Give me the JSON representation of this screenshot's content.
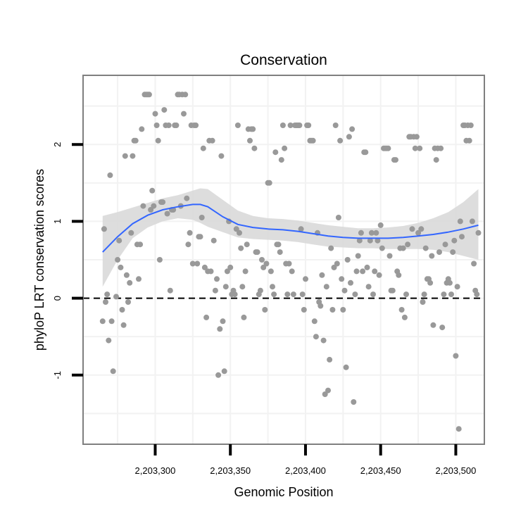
{
  "chart_data": {
    "type": "scatter",
    "title": "Conservation",
    "xlabel": "Genomic Position",
    "ylabel": "phyloP LRT conservation scores",
    "xlim": [
      2203252,
      2203519
    ],
    "ylim": [
      -1.9,
      2.9
    ],
    "x_ticks": [
      2203300,
      2203350,
      2203400,
      2203450,
      2203500
    ],
    "x_tick_labels": [
      "2,203,300",
      "2,203,350",
      "2,203,400",
      "2,203,450",
      "2,203,500"
    ],
    "y_ticks": [
      -1,
      0,
      1,
      2
    ],
    "y_tick_labels": [
      "-1",
      "0",
      "1",
      "2"
    ],
    "grid": true,
    "reference_line": {
      "y": 0,
      "style": "dashed"
    },
    "colors": {
      "points": "#999999",
      "smooth_line": "#3366FF",
      "ribbon": "#D9D9D9",
      "panel_border": "#7F7F7F",
      "grid": "#F2F2F2"
    },
    "points": [
      [
        2203265,
        -0.3
      ],
      [
        2203266,
        0.9
      ],
      [
        2203267,
        -0.05
      ],
      [
        2203268,
        0.05
      ],
      [
        2203269,
        -0.55
      ],
      [
        2203270,
        1.6
      ],
      [
        2203271,
        -0.3
      ],
      [
        2203272,
        -0.95
      ],
      [
        2203274,
        0.02
      ],
      [
        2203275,
        0.5
      ],
      [
        2203276,
        0.75
      ],
      [
        2203277,
        0.4
      ],
      [
        2203278,
        -0.15
      ],
      [
        2203279,
        -0.35
      ],
      [
        2203280,
        1.85
      ],
      [
        2203281,
        0.3
      ],
      [
        2203282,
        -0.05
      ],
      [
        2203283,
        0.2
      ],
      [
        2203284,
        0.85
      ],
      [
        2203285,
        1.85
      ],
      [
        2203286,
        2.05
      ],
      [
        2203287,
        2.05
      ],
      [
        2203288,
        0.7
      ],
      [
        2203289,
        0.25
      ],
      [
        2203290,
        0.7
      ],
      [
        2203291,
        2.2
      ],
      [
        2203292,
        1.2
      ],
      [
        2203293,
        2.65
      ],
      [
        2203294,
        2.65
      ],
      [
        2203295,
        2.65
      ],
      [
        2203296,
        2.65
      ],
      [
        2203297,
        1.15
      ],
      [
        2203298,
        1.4
      ],
      [
        2203299,
        1.2
      ],
      [
        2203300,
        2.4
      ],
      [
        2203301,
        2.25
      ],
      [
        2203302,
        2.05
      ],
      [
        2203303,
        0.5
      ],
      [
        2203304,
        1.25
      ],
      [
        2203305,
        1.25
      ],
      [
        2203306,
        2.45
      ],
      [
        2203307,
        2.25
      ],
      [
        2203308,
        1.1
      ],
      [
        2203309,
        2.25
      ],
      [
        2203310,
        0.1
      ],
      [
        2203311,
        1.15
      ],
      [
        2203312,
        1.15
      ],
      [
        2203313,
        2.25
      ],
      [
        2203314,
        2.25
      ],
      [
        2203315,
        2.65
      ],
      [
        2203316,
        2.65
      ],
      [
        2203317,
        1.2
      ],
      [
        2203318,
        2.65
      ],
      [
        2203319,
        2.4
      ],
      [
        2203320,
        2.65
      ],
      [
        2203321,
        1.3
      ],
      [
        2203322,
        0.7
      ],
      [
        2203323,
        0.85
      ],
      [
        2203324,
        2.25
      ],
      [
        2203325,
        0.45
      ],
      [
        2203326,
        2.25
      ],
      [
        2203327,
        2.25
      ],
      [
        2203328,
        0.45
      ],
      [
        2203329,
        0.8
      ],
      [
        2203330,
        0.8
      ],
      [
        2203331,
        1.05
      ],
      [
        2203332,
        1.95
      ],
      [
        2203333,
        0.4
      ],
      [
        2203334,
        -0.25
      ],
      [
        2203335,
        0.35
      ],
      [
        2203336,
        2.05
      ],
      [
        2203337,
        0.35
      ],
      [
        2203338,
        2.05
      ],
      [
        2203339,
        0.75
      ],
      [
        2203340,
        0.1
      ],
      [
        2203341,
        0.25
      ],
      [
        2203342,
        -1.0
      ],
      [
        2203343,
        -0.4
      ],
      [
        2203344,
        1.85
      ],
      [
        2203345,
        -0.3
      ],
      [
        2203346,
        -0.95
      ],
      [
        2203347,
        0.15
      ],
      [
        2203348,
        0.35
      ],
      [
        2203349,
        1.0
      ],
      [
        2203350,
        0.4
      ],
      [
        2203351,
        0.05
      ],
      [
        2203352,
        0.1
      ],
      [
        2203353,
        0.05
      ],
      [
        2203354,
        0.9
      ],
      [
        2203355,
        2.25
      ],
      [
        2203356,
        0.85
      ],
      [
        2203357,
        0.65
      ],
      [
        2203358,
        0.15
      ],
      [
        2203359,
        -0.25
      ],
      [
        2203360,
        0.35
      ],
      [
        2203361,
        0.7
      ],
      [
        2203362,
        2.2
      ],
      [
        2203363,
        2.05
      ],
      [
        2203364,
        2.2
      ],
      [
        2203365,
        2.2
      ],
      [
        2203366,
        1.95
      ],
      [
        2203367,
        0.6
      ],
      [
        2203368,
        0.6
      ],
      [
        2203369,
        0.05
      ],
      [
        2203370,
        0.1
      ],
      [
        2203371,
        0.5
      ],
      [
        2203372,
        0.4
      ],
      [
        2203373,
        -0.15
      ],
      [
        2203374,
        0.45
      ],
      [
        2203375,
        1.5
      ],
      [
        2203376,
        1.5
      ],
      [
        2203377,
        0.35
      ],
      [
        2203378,
        0.15
      ],
      [
        2203379,
        0.05
      ],
      [
        2203380,
        1.9
      ],
      [
        2203381,
        0.7
      ],
      [
        2203382,
        0.7
      ],
      [
        2203383,
        0.6
      ],
      [
        2203384,
        1.8
      ],
      [
        2203385,
        2.25
      ],
      [
        2203386,
        1.95
      ],
      [
        2203387,
        0.45
      ],
      [
        2203388,
        0.05
      ],
      [
        2203389,
        0.45
      ],
      [
        2203390,
        2.25
      ],
      [
        2203391,
        0.35
      ],
      [
        2203392,
        0.05
      ],
      [
        2203393,
        2.25
      ],
      [
        2203394,
        2.25
      ],
      [
        2203395,
        2.25
      ],
      [
        2203396,
        2.25
      ],
      [
        2203397,
        0.9
      ],
      [
        2203398,
        0.05
      ],
      [
        2203399,
        -0.15
      ],
      [
        2203400,
        0.25
      ],
      [
        2203401,
        2.25
      ],
      [
        2203402,
        2.25
      ],
      [
        2203403,
        2.05
      ],
      [
        2203404,
        2.05
      ],
      [
        2203405,
        2.05
      ],
      [
        2203406,
        -0.3
      ],
      [
        2203407,
        -0.5
      ],
      [
        2203408,
        0.85
      ],
      [
        2203409,
        -0.05
      ],
      [
        2203410,
        -0.1
      ],
      [
        2203411,
        0.3
      ],
      [
        2203412,
        -0.55
      ],
      [
        2203413,
        -1.25
      ],
      [
        2203414,
        0.15
      ],
      [
        2203415,
        -1.2
      ],
      [
        2203416,
        -0.8
      ],
      [
        2203417,
        0.65
      ],
      [
        2203418,
        -0.15
      ],
      [
        2203419,
        0.4
      ],
      [
        2203420,
        2.25
      ],
      [
        2203421,
        0.45
      ],
      [
        2203422,
        1.05
      ],
      [
        2203423,
        2.05
      ],
      [
        2203424,
        0.25
      ],
      [
        2203425,
        -0.15
      ],
      [
        2203426,
        0.1
      ],
      [
        2203427,
        -0.9
      ],
      [
        2203428,
        0.5
      ],
      [
        2203429,
        2.1
      ],
      [
        2203430,
        0.2
      ],
      [
        2203431,
        2.2
      ],
      [
        2203432,
        -1.35
      ],
      [
        2203433,
        0.05
      ],
      [
        2203434,
        0.35
      ],
      [
        2203435,
        0.55
      ],
      [
        2203436,
        0.75
      ],
      [
        2203437,
        0.85
      ],
      [
        2203438,
        0.35
      ],
      [
        2203439,
        1.9
      ],
      [
        2203440,
        1.9
      ],
      [
        2203441,
        0.4
      ],
      [
        2203442,
        0.15
      ],
      [
        2203443,
        0.75
      ],
      [
        2203444,
        0.85
      ],
      [
        2203445,
        0.05
      ],
      [
        2203446,
        0.35
      ],
      [
        2203447,
        0.85
      ],
      [
        2203448,
        0.75
      ],
      [
        2203449,
        0.3
      ],
      [
        2203450,
        0.95
      ],
      [
        2203451,
        0.65
      ],
      [
        2203452,
        1.95
      ],
      [
        2203453,
        1.95
      ],
      [
        2203454,
        1.95
      ],
      [
        2203455,
        1.95
      ],
      [
        2203456,
        0.55
      ],
      [
        2203457,
        0.1
      ],
      [
        2203458,
        0.1
      ],
      [
        2203459,
        1.8
      ],
      [
        2203460,
        1.8
      ],
      [
        2203461,
        0.35
      ],
      [
        2203462,
        0.3
      ],
      [
        2203463,
        0.65
      ],
      [
        2203464,
        -0.15
      ],
      [
        2203465,
        0.65
      ],
      [
        2203466,
        -0.25
      ],
      [
        2203467,
        0.05
      ],
      [
        2203468,
        0.7
      ],
      [
        2203469,
        2.1
      ],
      [
        2203470,
        2.1
      ],
      [
        2203471,
        0.9
      ],
      [
        2203472,
        2.1
      ],
      [
        2203473,
        1.95
      ],
      [
        2203474,
        2.1
      ],
      [
        2203475,
        0.85
      ],
      [
        2203476,
        1.95
      ],
      [
        2203477,
        0.9
      ],
      [
        2203478,
        -0.05
      ],
      [
        2203479,
        0.05
      ],
      [
        2203480,
        0.65
      ],
      [
        2203481,
        0.25
      ],
      [
        2203482,
        0.25
      ],
      [
        2203483,
        0.2
      ],
      [
        2203484,
        0.55
      ],
      [
        2203485,
        -0.35
      ],
      [
        2203486,
        1.95
      ],
      [
        2203487,
        1.8
      ],
      [
        2203488,
        1.95
      ],
      [
        2203489,
        0.6
      ],
      [
        2203490,
        1.95
      ],
      [
        2203491,
        -0.38
      ],
      [
        2203492,
        0.05
      ],
      [
        2203493,
        0.7
      ],
      [
        2203494,
        0.2
      ],
      [
        2203495,
        0.25
      ],
      [
        2203496,
        0.2
      ],
      [
        2203497,
        0.05
      ],
      [
        2203498,
        0.6
      ],
      [
        2203499,
        0.75
      ],
      [
        2203500,
        -0.75
      ],
      [
        2203501,
        0.15
      ],
      [
        2203502,
        -1.7
      ],
      [
        2203503,
        1.0
      ],
      [
        2203504,
        0.8
      ],
      [
        2203505,
        2.25
      ],
      [
        2203506,
        2.25
      ],
      [
        2203507,
        2.05
      ],
      [
        2203508,
        2.25
      ],
      [
        2203509,
        2.05
      ],
      [
        2203510,
        2.25
      ],
      [
        2203511,
        1.0
      ],
      [
        2203512,
        0.45
      ],
      [
        2203513,
        0.1
      ],
      [
        2203514,
        0.05
      ],
      [
        2203515,
        0.85
      ]
    ],
    "smooth": {
      "x": [
        2203265,
        2203275,
        2203285,
        2203295,
        2203305,
        2203315,
        2203325,
        2203330,
        2203335,
        2203345,
        2203355,
        2203365,
        2203375,
        2203385,
        2203395,
        2203405,
        2203415,
        2203425,
        2203435,
        2203445,
        2203455,
        2203465,
        2203475,
        2203485,
        2203495,
        2203505,
        2203515
      ],
      "y": [
        0.6,
        0.8,
        0.97,
        1.08,
        1.15,
        1.19,
        1.22,
        1.22,
        1.19,
        1.06,
        0.96,
        0.92,
        0.9,
        0.89,
        0.87,
        0.84,
        0.81,
        0.79,
        0.78,
        0.78,
        0.78,
        0.79,
        0.81,
        0.83,
        0.86,
        0.9,
        0.95
      ],
      "lower": [
        0.15,
        0.5,
        0.78,
        0.92,
        1.0,
        1.04,
        1.02,
        0.98,
        0.93,
        0.86,
        0.79,
        0.77,
        0.76,
        0.75,
        0.73,
        0.7,
        0.67,
        0.66,
        0.65,
        0.65,
        0.64,
        0.64,
        0.64,
        0.63,
        0.6,
        0.55,
        0.5
      ],
      "upper": [
        1.07,
        1.12,
        1.18,
        1.24,
        1.3,
        1.34,
        1.4,
        1.43,
        1.42,
        1.28,
        1.14,
        1.07,
        1.04,
        1.03,
        1.01,
        0.98,
        0.95,
        0.93,
        0.91,
        0.91,
        0.92,
        0.94,
        0.98,
        1.04,
        1.12,
        1.25,
        1.42
      ]
    }
  }
}
